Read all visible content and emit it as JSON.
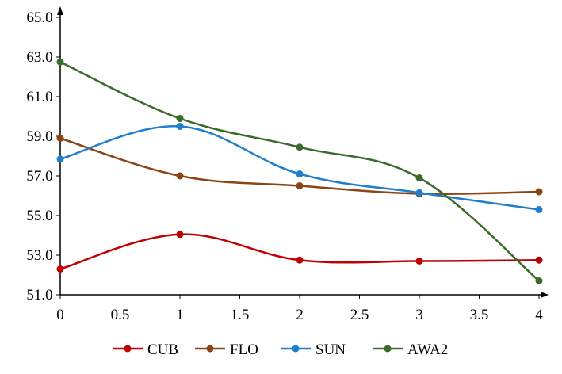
{
  "chart_data": {
    "type": "line",
    "title": "",
    "xlabel": "",
    "ylabel": "",
    "xlim": [
      0,
      4
    ],
    "ylim": [
      51.0,
      65.0
    ],
    "xticks": [
      "0",
      "0.5",
      "1",
      "1.5",
      "2",
      "2.5",
      "3",
      "3.5",
      "4"
    ],
    "yticks": [
      "51.0",
      "53.0",
      "55.0",
      "57.0",
      "59.0",
      "61.0",
      "63.0",
      "65.0"
    ],
    "x": [
      0,
      1,
      2,
      3,
      4
    ],
    "grid": false,
    "smooth": true,
    "legend_position": "bottom",
    "series": [
      {
        "name": "CUB",
        "color": "#c00000",
        "values": [
          52.3,
          54.05,
          52.75,
          52.7,
          52.75
        ]
      },
      {
        "name": "FLO",
        "color": "#8b4513",
        "values": [
          58.9,
          57.0,
          56.5,
          56.1,
          56.2
        ]
      },
      {
        "name": "SUN",
        "color": "#1f7fcc",
        "values": [
          57.85,
          59.5,
          57.1,
          56.15,
          55.3
        ]
      },
      {
        "name": "AWA2",
        "color": "#3a6b2a",
        "values": [
          62.75,
          59.9,
          58.45,
          56.9,
          51.7
        ]
      }
    ]
  }
}
